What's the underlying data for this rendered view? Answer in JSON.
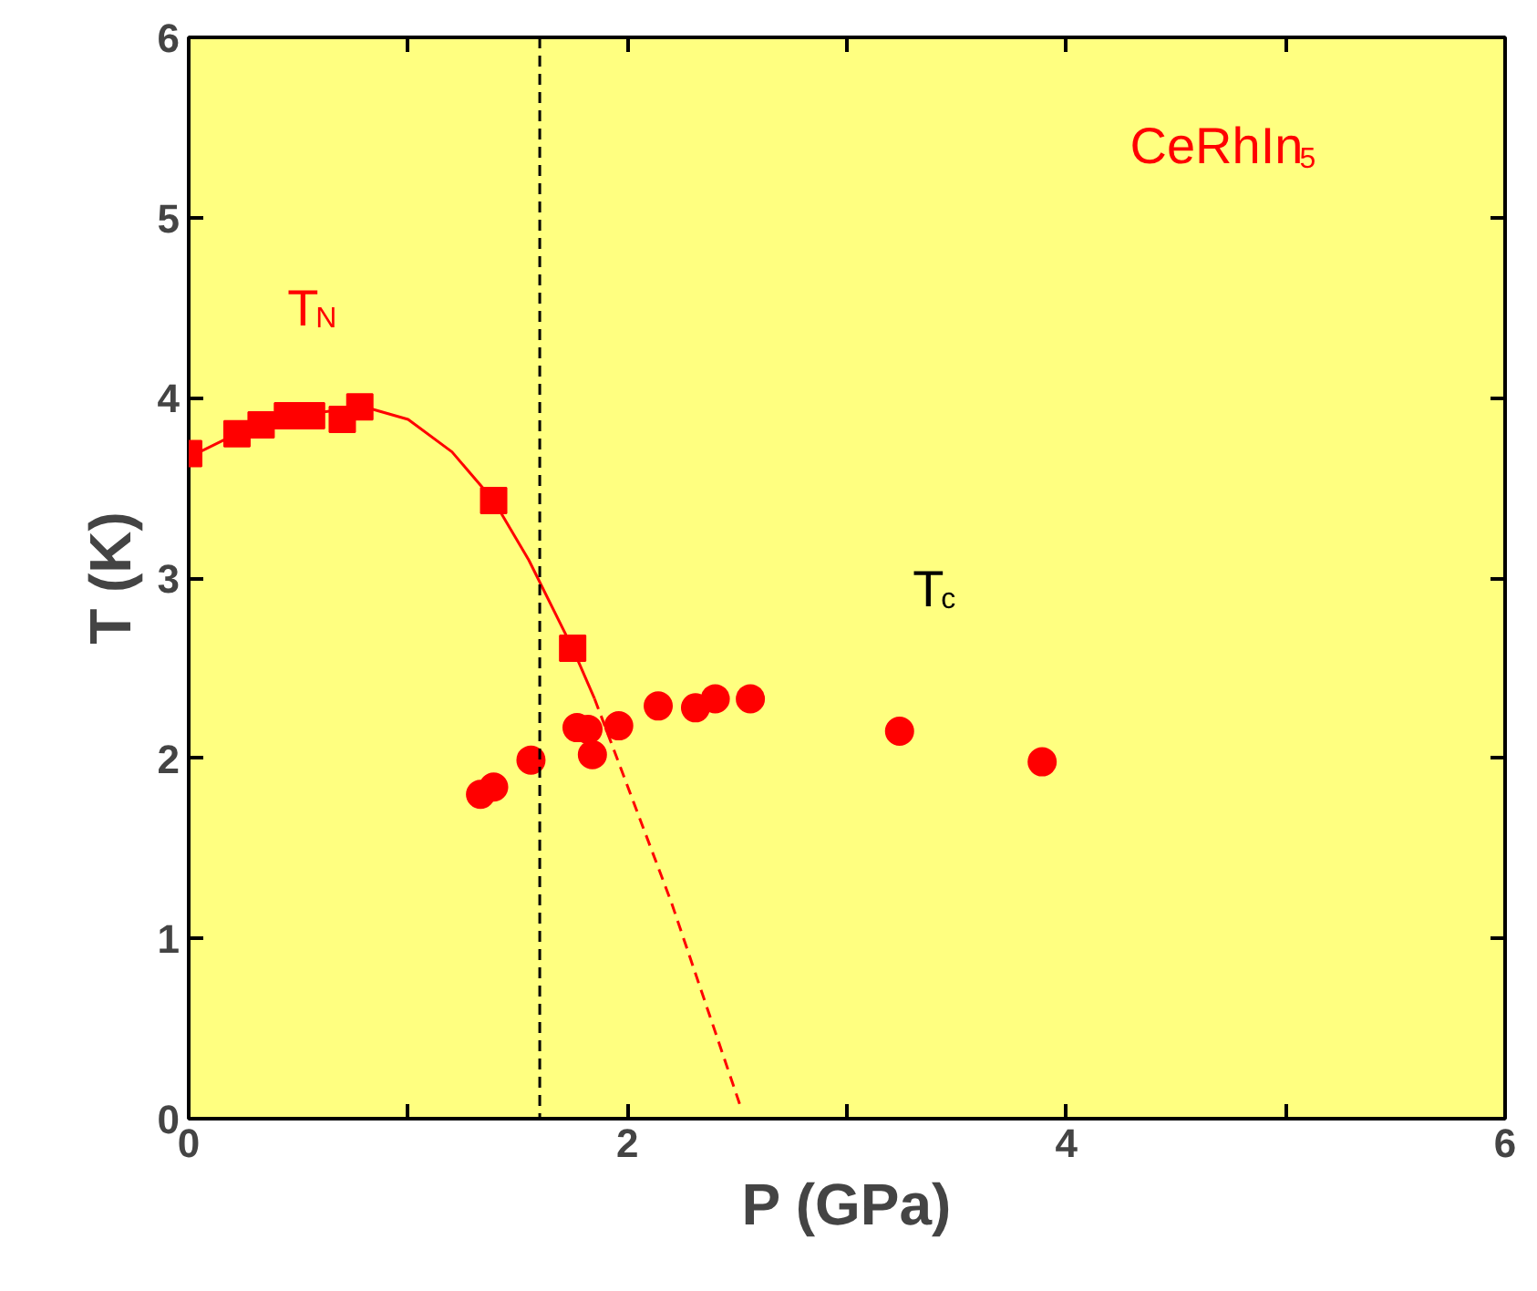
{
  "chart_data": {
    "type": "scatter",
    "xlabel": "P (GPa)",
    "ylabel": "T (K)",
    "xlim": [
      0,
      6
    ],
    "ylim": [
      0,
      6
    ],
    "xticks": [
      0,
      {
        "value": 1,
        "label": null
      },
      2,
      {
        "value": 3,
        "label": null
      },
      4,
      {
        "value": 5,
        "label": null
      },
      6
    ],
    "yticks": [
      0,
      1,
      2,
      3,
      4,
      5,
      6
    ],
    "grid": false,
    "series": [
      {
        "marker": "square",
        "color": "#ff0000",
        "x": [
          0,
          0.22,
          0.33,
          0.45,
          0.56,
          0.7,
          0.78,
          1.39,
          1.75
        ],
        "values": [
          3.69,
          3.8,
          3.85,
          3.9,
          3.9,
          3.88,
          3.95,
          3.43,
          2.61
        ]
      },
      {
        "marker": "circle",
        "color": "#ff0000",
        "x": [
          1.33,
          1.39,
          1.56,
          1.77,
          1.82,
          1.84,
          1.96,
          2.14,
          2.31,
          2.4,
          2.56,
          3.24,
          3.89
        ],
        "values": [
          1.8,
          1.84,
          1.99,
          2.17,
          2.16,
          2.02,
          2.18,
          2.29,
          2.28,
          2.33,
          2.33,
          2.15,
          1.98
        ]
      },
      {
        "type": "line",
        "line_style": "solid",
        "color": "#ff0000",
        "x": [
          0,
          0.2,
          0.4,
          0.6,
          0.8,
          1.0,
          1.2,
          1.39,
          1.55,
          1.75,
          1.85
        ],
        "values": [
          3.67,
          3.79,
          3.87,
          3.92,
          3.95,
          3.88,
          3.7,
          3.43,
          3.1,
          2.61,
          2.33
        ]
      },
      {
        "type": "line",
        "line_style": "dashed",
        "color": "#ff0000",
        "x": [
          1.85,
          2.2,
          2.52
        ],
        "values": [
          2.33,
          1.2,
          0.05
        ]
      }
    ],
    "ref_lines": [
      {
        "axis": "x",
        "value": 1.6,
        "color": "#000000",
        "line_style": "dashed"
      }
    ],
    "annotations": [
      "CeRhIn$_{5}$",
      "T$_{N}$",
      "T$_{c}$"
    ]
  }
}
